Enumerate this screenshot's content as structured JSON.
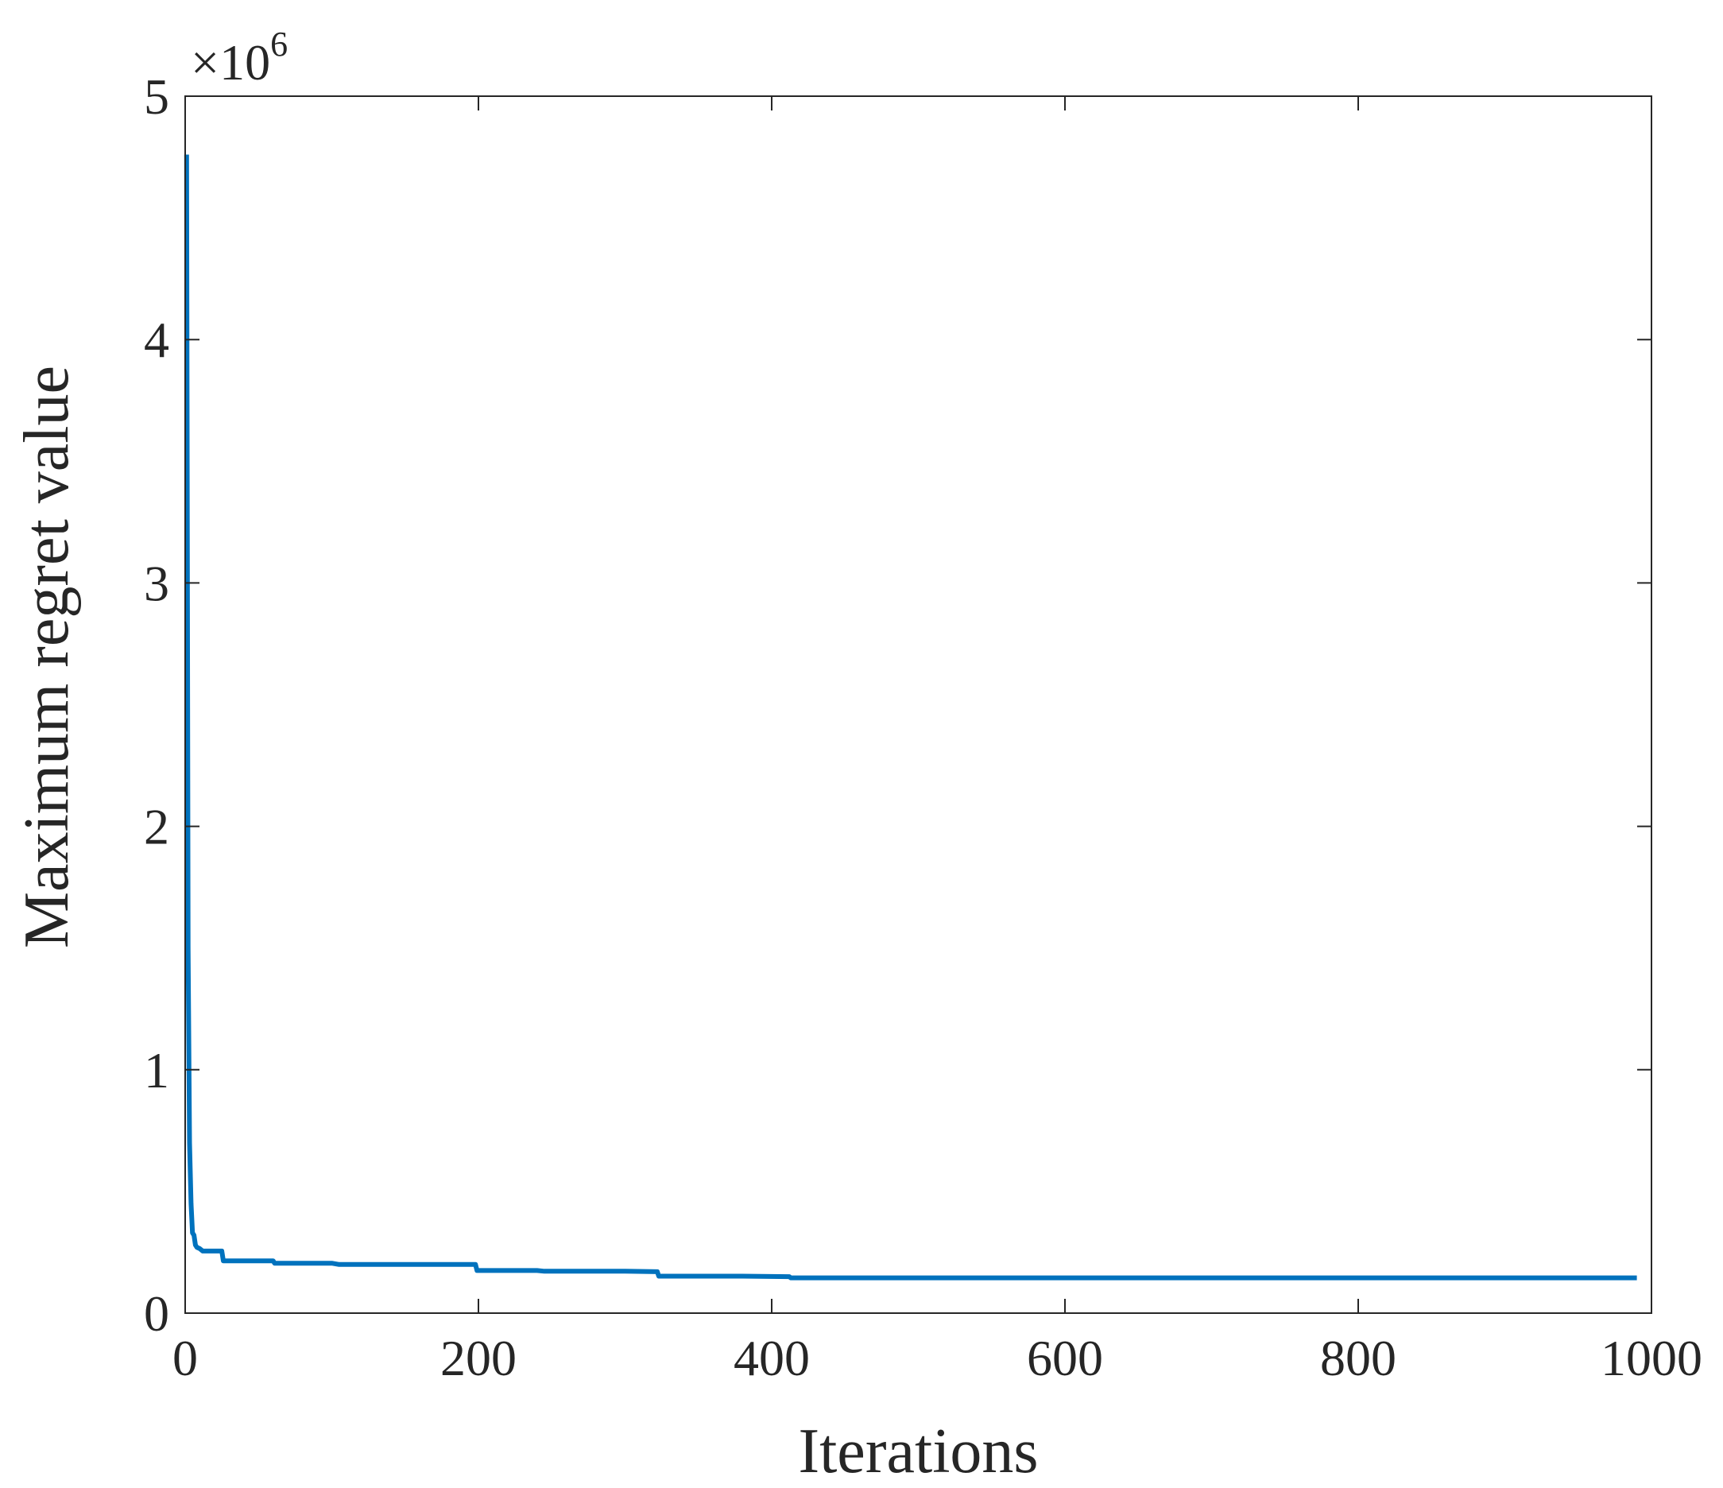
{
  "chart_data": {
    "type": "line",
    "title": "",
    "xlabel": "Iterations",
    "ylabel": "Maximum regret value",
    "y_exponent_label": {
      "base": "×10",
      "power": "6"
    },
    "xlim": [
      0,
      1000
    ],
    "ylim": [
      0,
      5000000
    ],
    "x_ticks": [
      0,
      200,
      400,
      600,
      800,
      1000
    ],
    "x_tick_labels": [
      "0",
      "200",
      "400",
      "600",
      "800",
      "1000"
    ],
    "y_ticks": [
      0,
      1000000,
      2000000,
      3000000,
      4000000,
      5000000
    ],
    "y_tick_labels": [
      "0",
      "1",
      "2",
      "3",
      "4",
      "5"
    ],
    "grid": false,
    "line_color": "#0072BD",
    "series": [
      {
        "x": [
          1,
          2,
          3,
          4,
          5,
          6,
          7,
          8,
          10,
          12,
          15,
          18,
          25,
          26,
          40,
          60,
          61,
          100,
          105,
          150,
          198,
          199,
          200,
          240,
          245,
          300,
          322,
          323,
          380,
          412,
          413,
          500,
          700,
          900,
          990
        ],
        "y": [
          4760000,
          1500000,
          700000,
          450000,
          330000,
          320000,
          280000,
          270000,
          265000,
          255000,
          255000,
          255000,
          255000,
          215000,
          215000,
          215000,
          205000,
          205000,
          200000,
          200000,
          200000,
          175000,
          175000,
          175000,
          172000,
          172000,
          170000,
          152000,
          152000,
          150000,
          145000,
          145000,
          145000,
          145000,
          145000
        ]
      }
    ]
  }
}
